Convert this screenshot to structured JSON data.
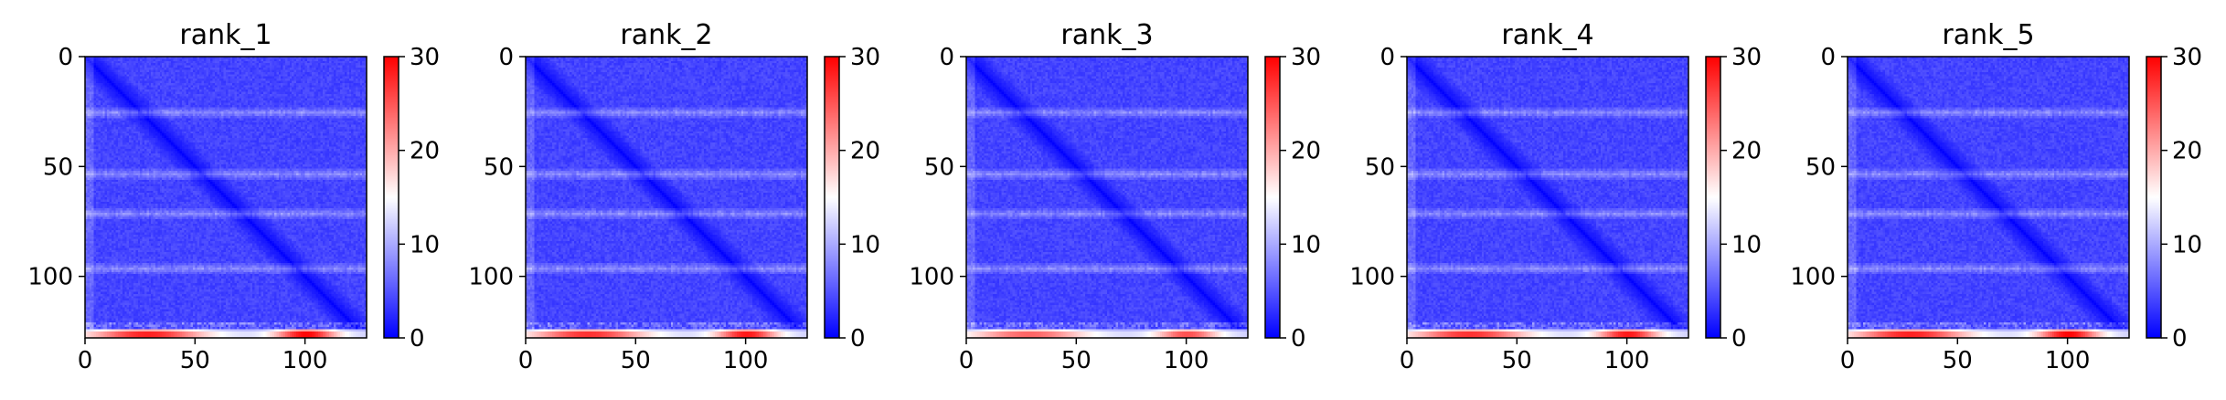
{
  "colorbar": {
    "colormap": "bwr",
    "range": [
      0,
      30
    ],
    "ticks": [
      "0",
      "10",
      "20",
      "30"
    ]
  },
  "chart_data": [
    {
      "type": "heatmap",
      "title": "rank_1",
      "size": 128,
      "x_ticks": [
        "0",
        "50",
        "100"
      ],
      "y_ticks": [
        "0",
        "50",
        "100"
      ],
      "xlim": [
        0,
        128
      ],
      "ylim": [
        128,
        0
      ],
      "value_range": [
        0,
        30
      ],
      "colormap": "bwr",
      "description_of_values": {
        "diagonal": 0,
        "typical_off_diagonal": 4,
        "bands_rows": [
          25,
          53,
          71,
          96
        ],
        "band_value": 9,
        "bottom_rows_value": 28
      }
    },
    {
      "type": "heatmap",
      "title": "rank_2",
      "size": 128,
      "x_ticks": [
        "0",
        "50",
        "100"
      ],
      "y_ticks": [
        "0",
        "50",
        "100"
      ],
      "xlim": [
        0,
        128
      ],
      "ylim": [
        128,
        0
      ],
      "value_range": [
        0,
        30
      ],
      "colormap": "bwr",
      "description_of_values": {
        "diagonal": 0,
        "typical_off_diagonal": 4,
        "bands_rows": [
          25,
          53,
          71,
          96
        ],
        "band_value": 9,
        "bottom_rows_value": 27
      }
    },
    {
      "type": "heatmap",
      "title": "rank_3",
      "size": 128,
      "x_ticks": [
        "0",
        "50",
        "100"
      ],
      "y_ticks": [
        "0",
        "50",
        "100"
      ],
      "xlim": [
        0,
        128
      ],
      "ylim": [
        128,
        0
      ],
      "value_range": [
        0,
        30
      ],
      "colormap": "bwr",
      "description_of_values": {
        "diagonal": 0,
        "typical_off_diagonal": 4,
        "bands_rows": [
          25,
          53,
          71,
          96
        ],
        "band_value": 9,
        "bottom_rows_value": 24
      }
    },
    {
      "type": "heatmap",
      "title": "rank_4",
      "size": 128,
      "x_ticks": [
        "0",
        "50",
        "100"
      ],
      "y_ticks": [
        "0",
        "50",
        "100"
      ],
      "xlim": [
        0,
        128
      ],
      "ylim": [
        128,
        0
      ],
      "value_range": [
        0,
        30
      ],
      "colormap": "bwr",
      "description_of_values": {
        "diagonal": 0,
        "typical_off_diagonal": 4,
        "bands_rows": [
          25,
          53,
          71,
          96
        ],
        "band_value": 9,
        "bottom_rows_value": 27
      }
    },
    {
      "type": "heatmap",
      "title": "rank_5",
      "size": 128,
      "x_ticks": [
        "0",
        "50",
        "100"
      ],
      "y_ticks": [
        "0",
        "50",
        "100"
      ],
      "xlim": [
        0,
        128
      ],
      "ylim": [
        128,
        0
      ],
      "value_range": [
        0,
        30
      ],
      "colormap": "bwr",
      "description_of_values": {
        "diagonal": 0,
        "typical_off_diagonal": 4,
        "bands_rows": [
          25,
          53,
          71,
          96
        ],
        "band_value": 9,
        "bottom_rows_value": 28
      }
    }
  ]
}
